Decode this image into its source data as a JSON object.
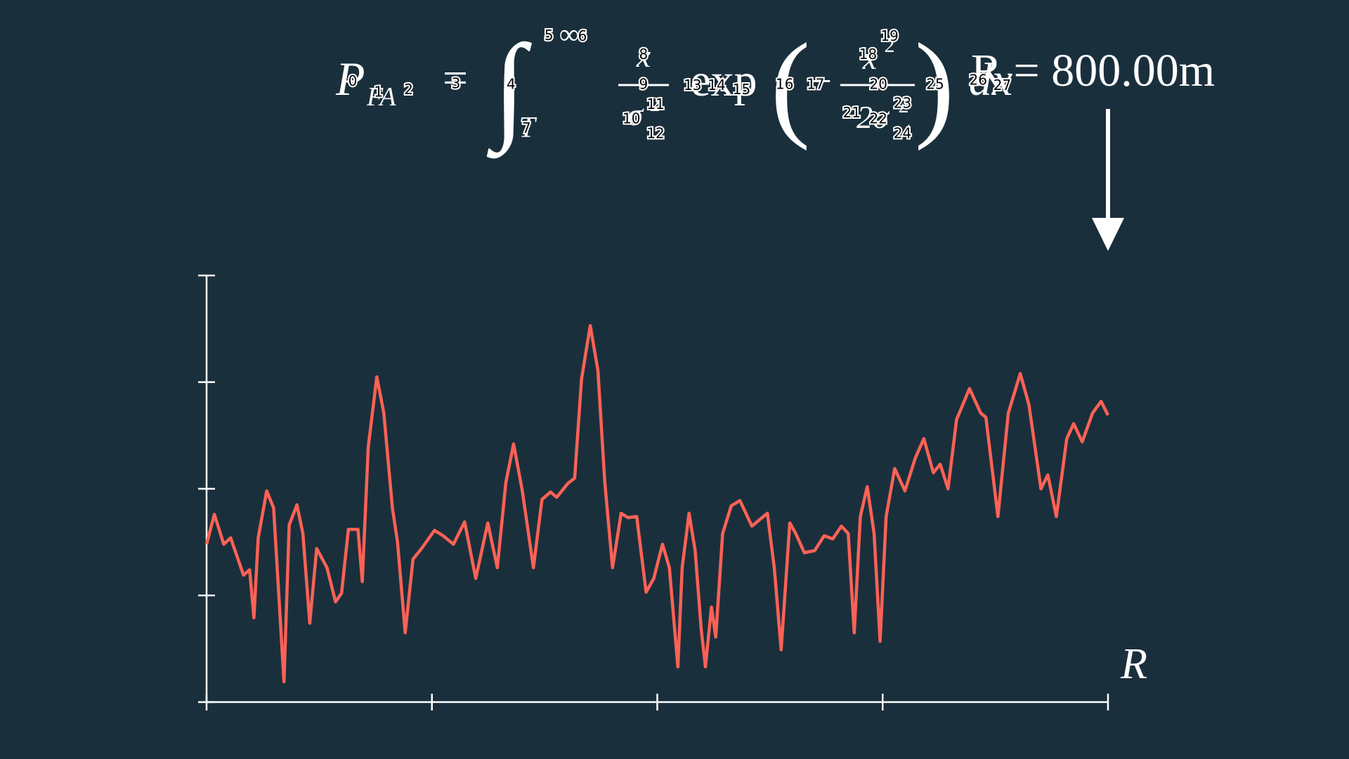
{
  "formula": {
    "lhs": "P",
    "lhs_sub": "FA",
    "equals": "=",
    "integral": "∫",
    "upper": "∞",
    "lower": "T",
    "frac1_num": "x",
    "frac1_den": "σ",
    "frac1_den_sup": "2",
    "func": "exp",
    "paren_open": "(",
    "minus": "−",
    "frac2_num": "x",
    "frac2_num_sup": "2",
    "frac2_den": "2σ",
    "frac2_den_sup": "2",
    "paren_close": ")",
    "dx": "dx"
  },
  "range_label": "R = 800.00m",
  "index_labels": [
    "0",
    "1",
    "2",
    "3",
    "4",
    "5",
    "6",
    "7",
    "8",
    "9",
    "10",
    "11",
    "12",
    "13",
    "14",
    "15",
    "16",
    "17",
    "18",
    "19",
    "20",
    "21",
    "22",
    "23",
    "24",
    "25",
    "26",
    "27"
  ],
  "chart_data": {
    "type": "line",
    "x_label": "R",
    "color": "#fc6255",
    "xlim": [
      0,
      800
    ],
    "xticks": [
      0,
      200,
      400,
      600,
      800
    ],
    "ylim": [
      0,
      4
    ],
    "yticks": [
      0,
      1,
      2,
      3,
      4
    ],
    "series": [
      {
        "x": [
          0,
          6.9,
          15.3,
          21.4,
          32.8,
          38.2,
          42.0,
          45.8,
          53.4,
          59.5,
          68.7,
          73.3,
          80.2,
          85.5,
          91.6,
          97.7,
          106.9,
          114.5,
          119.8,
          125.9,
          134.4,
          138.2,
          143.5,
          151.1,
          157.3,
          164.9,
          169.5,
          176.3,
          183.2,
          190.8,
          202.3,
          209.9,
          219.1,
          229.0,
          238.9,
          249.6,
          258.0,
          265.6,
          272.5,
          280.2,
          290.1,
          297.7,
          305.3,
          310.7,
          320.6,
          326.7,
          332.8,
          340.5,
          347.3,
          353.4,
          360.3,
          367.9,
          374.0,
          381.7,
          390.1,
          396.9,
          404.6,
          410.7,
          418.3,
          422.1,
          428.2,
          433.6,
          438.9,
          442.7,
          448.1,
          451.9,
          458.0,
          465.6,
          473.3,
          483.9,
          497.7,
          503.8,
          509.9,
          517.6,
          522.9,
          530.5,
          539.7,
          548.1,
          555.7,
          563.4,
          569.5,
          574.8,
          580.2,
          586.3,
          592.4,
          597.7,
          603.1,
          610.7,
          619.8,
          629.0,
          636.6,
          645.0,
          651.1,
          658.0,
          665.6,
          677.1,
          687.0,
          691.6,
          702.3,
          711.5,
          722.1,
          729.8,
          740.5,
          746.6,
          754.2,
          763.4,
          769.5,
          777.1,
          786.3,
          793.9,
          800
        ],
        "values": [
          1.48,
          1.76,
          1.48,
          1.54,
          1.19,
          1.24,
          0.79,
          1.54,
          1.98,
          1.82,
          0.19,
          1.66,
          1.85,
          1.58,
          0.74,
          1.44,
          1.26,
          0.94,
          1.02,
          1.62,
          1.62,
          1.13,
          2.39,
          3.05,
          2.71,
          1.82,
          1.5,
          0.65,
          1.34,
          1.44,
          1.61,
          1.56,
          1.48,
          1.69,
          1.16,
          1.68,
          1.26,
          2.06,
          2.42,
          1.98,
          1.26,
          1.9,
          1.97,
          1.92,
          2.05,
          2.1,
          3.03,
          3.53,
          3.11,
          2.06,
          1.26,
          1.77,
          1.73,
          1.74,
          1.03,
          1.16,
          1.48,
          1.26,
          0.33,
          1.26,
          1.77,
          1.42,
          0.69,
          0.33,
          0.89,
          0.61,
          1.58,
          1.84,
          1.89,
          1.65,
          1.77,
          1.26,
          0.49,
          1.68,
          1.58,
          1.4,
          1.42,
          1.56,
          1.53,
          1.65,
          1.58,
          0.65,
          1.74,
          2.02,
          1.58,
          0.57,
          1.74,
          2.19,
          1.98,
          2.29,
          2.47,
          2.15,
          2.23,
          2.0,
          2.65,
          2.94,
          2.71,
          2.67,
          1.74,
          2.71,
          3.08,
          2.79,
          2.0,
          2.13,
          1.74,
          2.47,
          2.61,
          2.44,
          2.71,
          2.82,
          2.69
        ]
      }
    ]
  }
}
